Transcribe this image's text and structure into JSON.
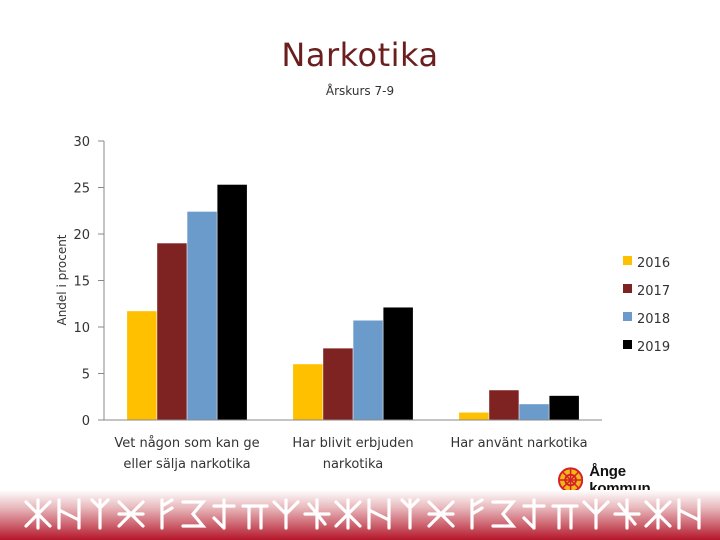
{
  "chart_data": {
    "type": "bar",
    "title": "Narkotika",
    "subtitle": "Årskurs 7-9",
    "ylabel": "Andel i procent",
    "xlabel": "",
    "ylim": [
      0,
      30
    ],
    "yticks": [
      0,
      5,
      10,
      15,
      20,
      25,
      30
    ],
    "grid": false,
    "legend_position": "right",
    "categories": [
      "Vet någon som kan ge eller sälja narkotika",
      "Har blivit erbjuden narkotika",
      "Har använt narkotika"
    ],
    "category_lines": [
      [
        "Vet någon som kan ge",
        "eller sälja narkotika"
      ],
      [
        "Har blivit erbjuden",
        "narkotika"
      ],
      [
        "Har använt narkotika"
      ]
    ],
    "series": [
      {
        "name": "2016",
        "color": "#FFC000",
        "values": [
          11.7,
          6.0,
          0.8
        ]
      },
      {
        "name": "2017",
        "color": "#7F2222",
        "values": [
          19.0,
          7.7,
          3.2
        ]
      },
      {
        "name": "2018",
        "color": "#6B9BCB",
        "values": [
          22.4,
          10.7,
          1.7
        ]
      },
      {
        "name": "2019",
        "color": "#000000",
        "values": [
          25.3,
          12.1,
          2.6
        ]
      }
    ]
  },
  "logo": {
    "text": "Ånge kommun",
    "colors": {
      "ring": "#D4202A",
      "fill": "#F2B712"
    },
    "icon": "wheel-emblem-icon"
  },
  "footer": {
    "icon": "runic-pattern-icon",
    "colors": {
      "band": "#B5162A",
      "glyph": "#ffffff"
    }
  }
}
